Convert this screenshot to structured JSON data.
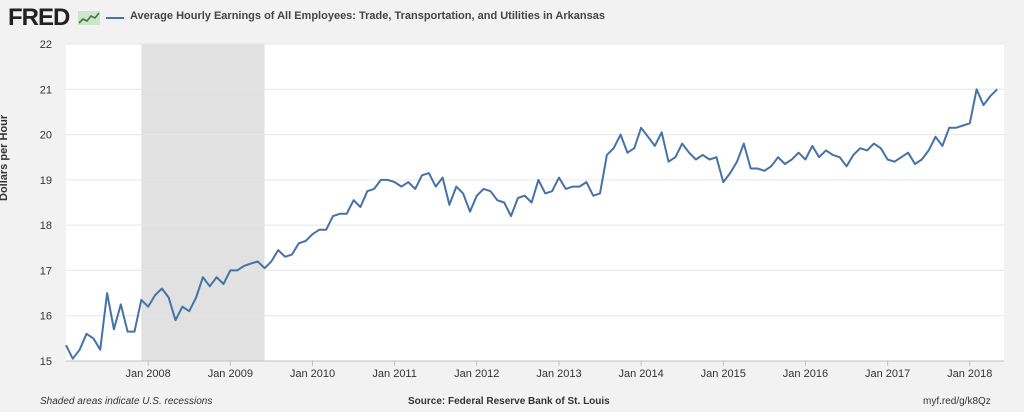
{
  "header": {
    "logo_text": "FRED",
    "logo_icon": "trend-line-icon",
    "series_title": "Average Hourly Earnings of All Employees: Trade, Transportation, and Utilities in Arkansas"
  },
  "footer": {
    "recession_note": "Shaded areas indicate U.S. recessions",
    "source": "Source: Federal Reserve Bank of St. Louis",
    "short_url": "myf.red/g/k8Qz"
  },
  "colors": {
    "line": "#4572a7",
    "recession_shade": "#e1e1e1",
    "plot_bg": "#ffffff",
    "page_bg": "#f2f2f2"
  },
  "chart_data": {
    "type": "line",
    "ylabel": "Dollars per Hour",
    "ylim": [
      15,
      22
    ],
    "y_ticks": [
      "15",
      "16",
      "17",
      "18",
      "19",
      "20",
      "21",
      "22"
    ],
    "x_ticks": [
      "Jan 2008",
      "Jan 2009",
      "Jan 2010",
      "Jan 2011",
      "Jan 2012",
      "Jan 2013",
      "Jan 2014",
      "Jan 2015",
      "Jan 2016",
      "Jan 2017",
      "Jan 2018"
    ],
    "x_range": [
      "2007-01",
      "2018-06"
    ],
    "x_start": "2007-01",
    "grid": "horizontal",
    "recessions": [
      {
        "start": "2007-12",
        "end": "2009-06"
      }
    ],
    "series": [
      {
        "name": "Average Hourly Earnings of All Employees: Trade, Transportation, and Utilities in Arkansas",
        "values": [
          15.35,
          15.05,
          15.25,
          15.6,
          15.5,
          15.25,
          16.5,
          15.7,
          16.25,
          15.65,
          15.65,
          16.35,
          16.2,
          16.45,
          16.6,
          16.4,
          15.9,
          16.2,
          16.1,
          16.4,
          16.85,
          16.65,
          16.85,
          16.7,
          17.0,
          17.0,
          17.1,
          17.15,
          17.2,
          17.05,
          17.2,
          17.45,
          17.3,
          17.35,
          17.6,
          17.65,
          17.8,
          17.9,
          17.9,
          18.2,
          18.25,
          18.25,
          18.55,
          18.4,
          18.75,
          18.8,
          19.0,
          19.0,
          18.95,
          18.85,
          18.95,
          18.8,
          19.1,
          19.15,
          18.85,
          19.05,
          18.45,
          18.85,
          18.7,
          18.3,
          18.65,
          18.8,
          18.75,
          18.55,
          18.5,
          18.2,
          18.6,
          18.65,
          18.5,
          19.0,
          18.7,
          18.75,
          19.05,
          18.8,
          18.85,
          18.85,
          18.95,
          18.65,
          18.7,
          19.55,
          19.7,
          20.0,
          19.6,
          19.7,
          20.15,
          19.95,
          19.75,
          20.05,
          19.4,
          19.5,
          19.8,
          19.6,
          19.45,
          19.55,
          19.45,
          19.5,
          18.95,
          19.15,
          19.4,
          19.8,
          19.25,
          19.25,
          19.2,
          19.3,
          19.5,
          19.35,
          19.45,
          19.6,
          19.45,
          19.75,
          19.5,
          19.65,
          19.55,
          19.5,
          19.3,
          19.55,
          19.7,
          19.65,
          19.8,
          19.7,
          19.45,
          19.4,
          19.5,
          19.6,
          19.35,
          19.45,
          19.65,
          19.95,
          19.75,
          20.15,
          20.15,
          20.2,
          20.25,
          21.0,
          20.65,
          20.85,
          21.0
        ]
      }
    ]
  }
}
